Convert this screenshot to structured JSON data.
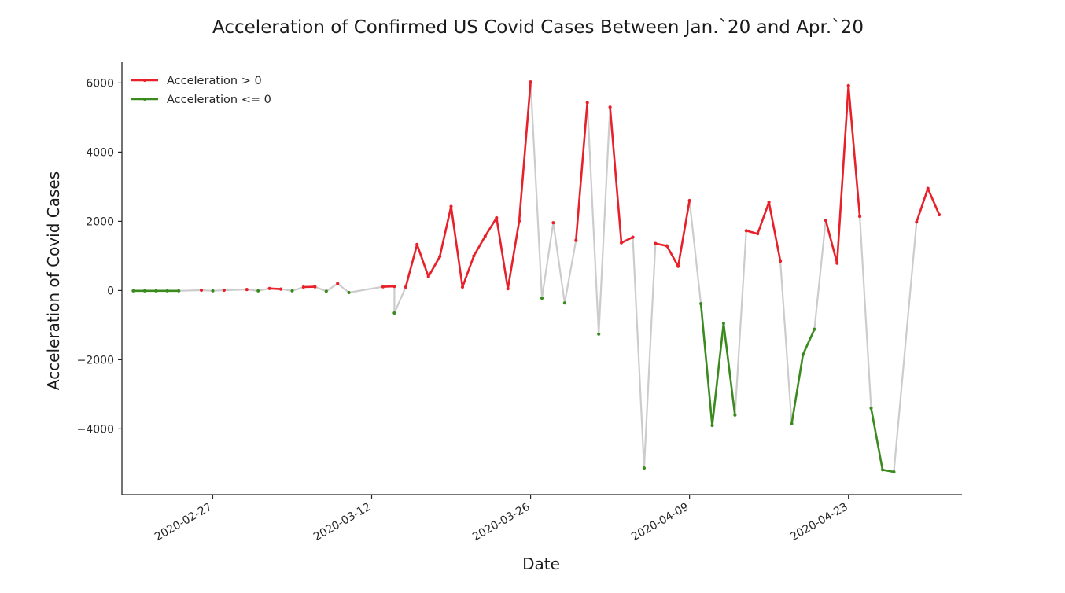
{
  "chart_data": {
    "type": "line",
    "title": "Acceleration of Confirmed US Covid Cases Between Jan.`20 and Apr.`20",
    "xlabel": "Date",
    "ylabel": "Acceleration of Covid Cases",
    "xlim": [
      "2020-02-19",
      "2020-05-03"
    ],
    "ylim": [
      -5900,
      6600
    ],
    "yticks": [
      6000,
      4000,
      2000,
      0,
      -2000,
      -4000
    ],
    "ytick_labels": [
      "6000",
      "4000",
      "2000",
      "0",
      "−2000",
      "−4000"
    ],
    "xticks": [
      "2020-02-27",
      "2020-03-12",
      "2020-03-26",
      "2020-04-09",
      "2020-04-23"
    ],
    "grid": false,
    "legend_position": "top-left",
    "colors": {
      "positive": "#e8202a",
      "nonpositive": "#3a8a1e",
      "connector": "#cccccc"
    },
    "series": [
      {
        "name": "Acceleration > 0",
        "color": "#e8202a",
        "x": [
          "2020-02-26",
          "2020-02-28",
          "2020-03-01",
          "2020-03-03",
          "2020-03-04",
          "2020-03-06",
          "2020-03-07",
          "2020-03-09",
          "2020-03-13",
          "2020-03-14",
          "2020-03-15",
          "2020-03-16",
          "2020-03-17",
          "2020-03-18",
          "2020-03-19",
          "2020-03-20",
          "2020-03-21",
          "2020-03-22",
          "2020-03-23",
          "2020-03-24",
          "2020-03-25",
          "2020-03-26",
          "2020-03-28",
          "2020-03-30",
          "2020-03-31",
          "2020-04-02",
          "2020-04-03",
          "2020-04-04",
          "2020-04-06",
          "2020-04-07",
          "2020-04-08",
          "2020-04-09",
          "2020-04-14",
          "2020-04-15",
          "2020-04-16",
          "2020-04-17",
          "2020-04-21",
          "2020-04-22",
          "2020-04-23",
          "2020-04-24",
          "2020-04-29",
          "2020-04-30",
          "2020-05-01"
        ],
        "y": [
          10,
          10,
          30,
          60,
          40,
          100,
          110,
          200,
          110,
          120,
          100,
          1330,
          400,
          980,
          2430,
          100,
          1000,
          1570,
          2100,
          50,
          2010,
          6030,
          1960,
          1450,
          5430,
          5300,
          1380,
          1540,
          1360,
          1290,
          700,
          2600,
          1730,
          1640,
          2550,
          850,
          2030,
          790,
          5920,
          2140,
          1980,
          2950,
          2190
        ]
      },
      {
        "name": "Acceleration <= 0",
        "color": "#3a8a1e",
        "x": [
          "2020-02-20",
          "2020-02-21",
          "2020-02-22",
          "2020-02-23",
          "2020-02-24",
          "2020-02-27",
          "2020-03-02",
          "2020-03-05",
          "2020-03-08",
          "2020-03-10",
          "2020-03-14",
          "2020-03-27",
          "2020-03-29",
          "2020-04-01",
          "2020-04-05",
          "2020-04-10",
          "2020-04-11",
          "2020-04-12",
          "2020-04-13",
          "2020-04-18",
          "2020-04-19",
          "2020-04-20",
          "2020-04-25",
          "2020-04-26",
          "2020-04-27"
        ],
        "y": [
          -10,
          -10,
          -10,
          -10,
          -10,
          -10,
          -10,
          -10,
          -20,
          -60,
          -650,
          -220,
          -360,
          -1260,
          -5130,
          -380,
          -3900,
          -950,
          -3600,
          -3850,
          -1850,
          -1120,
          -3400,
          -5180,
          -5240
        ]
      }
    ]
  }
}
